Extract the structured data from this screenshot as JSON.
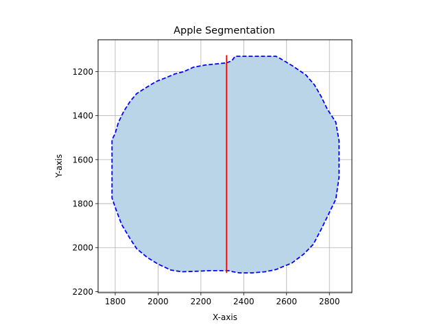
{
  "chart_data": {
    "type": "area",
    "title": "Apple Segmentation",
    "xlabel": "X-axis",
    "ylabel": "Y-axis",
    "xlim": [
      1720,
      2905
    ],
    "ylim": [
      2205,
      1055
    ],
    "y_inverted": true,
    "grid": true,
    "xticks": [
      1800,
      2000,
      2200,
      2400,
      2600,
      2800
    ],
    "yticks": [
      1200,
      1400,
      1600,
      1800,
      2000,
      2200
    ],
    "series": [
      {
        "kind": "polygon",
        "x": [
          2320,
          2345,
          2360,
          2550,
          2570,
          2630,
          2690,
          2730,
          2760,
          2790,
          2830,
          2845,
          2845,
          2830,
          2795,
          2760,
          2725,
          2680,
          2625,
          2575,
          2550,
          2500,
          2440,
          2380,
          2350,
          2330,
          2240,
          2170,
          2110,
          2060,
          2000,
          1950,
          1900,
          1870,
          1830,
          1805,
          1785,
          1785,
          1800,
          1815,
          1840,
          1870,
          1900,
          1940,
          1990,
          2030,
          2080,
          2120,
          2165,
          2220,
          2270,
          2320
        ],
        "y": [
          1160,
          1150,
          1130,
          1130,
          1140,
          1175,
          1215,
          1260,
          1310,
          1370,
          1430,
          1515,
          1680,
          1780,
          1850,
          1920,
          1985,
          2030,
          2070,
          2090,
          2100,
          2110,
          2115,
          2115,
          2110,
          2105,
          2105,
          2108,
          2110,
          2102,
          2075,
          2045,
          2005,
          1960,
          1895,
          1830,
          1775,
          1510,
          1480,
          1430,
          1380,
          1335,
          1300,
          1275,
          1245,
          1230,
          1210,
          1200,
          1180,
          1170,
          1165,
          1160
        ],
        "fill": "#bad4e8",
        "stroke": "#0000ff",
        "linestyle": "dashed"
      },
      {
        "kind": "line",
        "x": [
          2320,
          2320
        ],
        "y": [
          1125,
          2115
        ],
        "stroke": "#ff0000",
        "linestyle": "solid"
      }
    ]
  }
}
